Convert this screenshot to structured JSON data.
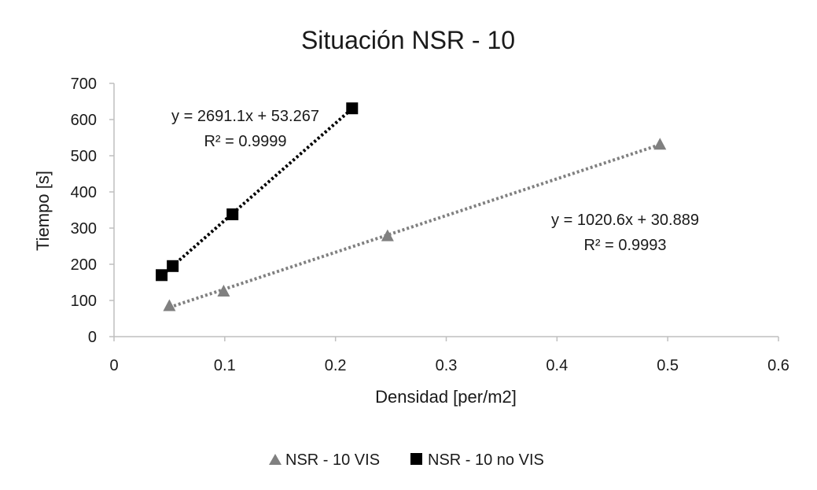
{
  "chart_data": {
    "type": "scatter",
    "title": "Situación NSR - 10",
    "xlabel": "Densidad [per/m2]",
    "ylabel": "Tiempo [s]",
    "xlim": [
      0,
      0.6
    ],
    "ylim": [
      0,
      700
    ],
    "x_ticks": [
      "0",
      "0.1",
      "0.2",
      "0.3",
      "0.4",
      "0.5",
      "0.6"
    ],
    "y_ticks": [
      "0",
      "100",
      "200",
      "300",
      "400",
      "500",
      "600",
      "700"
    ],
    "grid": false,
    "legend_position": "bottom",
    "series": [
      {
        "name": "NSR - 10 VIS",
        "marker": "triangle",
        "color": "#808080",
        "trendline": "linear",
        "points": [
          {
            "x": 0.05,
            "y": 86
          },
          {
            "x": 0.099,
            "y": 126
          },
          {
            "x": 0.247,
            "y": 279
          },
          {
            "x": 0.493,
            "y": 532
          }
        ],
        "equation": "y = 1020.6x + 30.889",
        "r_squared": "R² = 0.9993"
      },
      {
        "name": "NSR - 10 no VIS",
        "marker": "square",
        "color": "#000000",
        "trendline": "linear",
        "points": [
          {
            "x": 0.043,
            "y": 170
          },
          {
            "x": 0.053,
            "y": 195
          },
          {
            "x": 0.107,
            "y": 338
          },
          {
            "x": 0.215,
            "y": 631
          }
        ],
        "equation": "y = 2691.1x + 53.267",
        "r_squared": "R² = 0.9999"
      }
    ]
  }
}
